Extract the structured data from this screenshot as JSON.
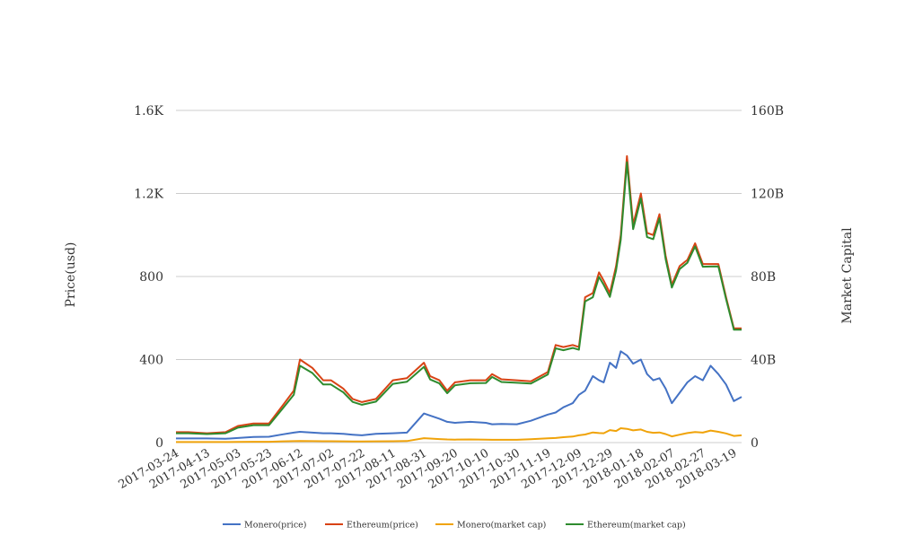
{
  "chart_data": {
    "type": "line",
    "title": "",
    "ylabel": "Price(usd)",
    "y2label": "Market Capital",
    "ylim": [
      0,
      1600
    ],
    "y2lim": [
      0,
      160000000000
    ],
    "yticks": [
      "0",
      "400",
      "800",
      "1.2K",
      "1.6K"
    ],
    "y2ticks": [
      "0",
      "40B",
      "80B",
      "120B",
      "160B"
    ],
    "xticks": [
      "2017-03-24",
      "2017-04-13",
      "2017-05-03",
      "2017-05-23",
      "2017-06-12",
      "2017-07-02",
      "2017-07-22",
      "2017-08-11",
      "2017-08-31",
      "2017-09-20",
      "2017-10-10",
      "2017-10-30",
      "2017-11-19",
      "2017-12-09",
      "2017-12-29",
      "2018-01-18",
      "2018-02-07",
      "2018-02-27",
      "2018-03-19"
    ],
    "grid": true,
    "legend_position": "bottom",
    "dates": [
      "2017-03-24",
      "2017-04-01",
      "2017-04-13",
      "2017-04-25",
      "2017-05-03",
      "2017-05-13",
      "2017-05-23",
      "2017-06-01",
      "2017-06-08",
      "2017-06-12",
      "2017-06-20",
      "2017-06-27",
      "2017-07-02",
      "2017-07-10",
      "2017-07-16",
      "2017-07-22",
      "2017-07-31",
      "2017-08-11",
      "2017-08-20",
      "2017-08-31",
      "2017-09-04",
      "2017-09-10",
      "2017-09-15",
      "2017-09-20",
      "2017-09-30",
      "2017-10-10",
      "2017-10-14",
      "2017-10-20",
      "2017-10-30",
      "2017-11-08",
      "2017-11-19",
      "2017-11-24",
      "2017-11-29",
      "2017-12-05",
      "2017-12-09",
      "2017-12-13",
      "2017-12-18",
      "2017-12-22",
      "2017-12-25",
      "2017-12-29",
      "2018-01-02",
      "2018-01-05",
      "2018-01-09",
      "2018-01-13",
      "2018-01-18",
      "2018-01-22",
      "2018-01-26",
      "2018-01-30",
      "2018-02-03",
      "2018-02-07",
      "2018-02-12",
      "2018-02-17",
      "2018-02-22",
      "2018-02-27",
      "2018-03-04",
      "2018-03-09",
      "2018-03-14",
      "2018-03-19",
      "2018-03-24"
    ],
    "series": [
      {
        "name": "Monero(price)",
        "axis": "left",
        "color": "#4472c4",
        "values": [
          20,
          20,
          20,
          18,
          22,
          27,
          28,
          40,
          48,
          52,
          48,
          45,
          45,
          42,
          38,
          35,
          42,
          45,
          48,
          140,
          130,
          115,
          100,
          95,
          100,
          95,
          88,
          90,
          88,
          105,
          135,
          145,
          170,
          190,
          230,
          250,
          320,
          300,
          290,
          385,
          360,
          440,
          420,
          380,
          400,
          330,
          300,
          310,
          260,
          190,
          240,
          290,
          320,
          300,
          370,
          330,
          280,
          200,
          220
        ]
      },
      {
        "name": "Ethereum(price)",
        "axis": "left",
        "color": "#d84315",
        "values": [
          50,
          50,
          45,
          50,
          80,
          92,
          92,
          180,
          250,
          400,
          360,
          300,
          300,
          260,
          210,
          195,
          210,
          300,
          310,
          385,
          320,
          300,
          250,
          290,
          300,
          300,
          330,
          305,
          300,
          295,
          340,
          470,
          460,
          470,
          460,
          700,
          720,
          820,
          780,
          720,
          850,
          1000,
          1380,
          1050,
          1200,
          1010,
          1000,
          1100,
          900,
          760,
          850,
          880,
          960,
          860,
          860,
          860,
          700,
          550,
          550
        ]
      },
      {
        "name": "Monero(market cap)",
        "axis": "right",
        "color": "#f0a30a",
        "values": [
          270000000,
          270000000,
          270000000,
          250000000,
          300000000,
          380000000,
          400000000,
          600000000,
          700000000,
          760000000,
          700000000,
          650000000,
          650000000,
          610000000,
          560000000,
          520000000,
          620000000,
          670000000,
          720000000,
          2100000000,
          1950000000,
          1700000000,
          1500000000,
          1420000000,
          1500000000,
          1420000000,
          1320000000,
          1350000000,
          1320000000,
          1580000000,
          2050000000,
          2200000000,
          2600000000,
          2900000000,
          3500000000,
          3900000000,
          4900000000,
          4600000000,
          4500000000,
          6000000000,
          5600000000,
          6900000000,
          6600000000,
          5900000000,
          6300000000,
          5200000000,
          4700000000,
          4900000000,
          4100000000,
          3000000000,
          3800000000,
          4600000000,
          5100000000,
          4800000000,
          5800000000,
          5200000000,
          4400000000,
          3200000000,
          3500000000
        ]
      },
      {
        "name": "Ethereum(market cap)",
        "axis": "right",
        "color": "#2e8b2e",
        "values": [
          4500000000,
          4500000000,
          4100000000,
          4500000000,
          7200000000,
          8400000000,
          8400000000,
          16500000000,
          23000000000,
          37000000000,
          33500000000,
          28000000000,
          28000000000,
          24200000000,
          19600000000,
          18200000000,
          19700000000,
          28300000000,
          29300000000,
          36500000000,
          30400000000,
          28500000000,
          23800000000,
          27600000000,
          28600000000,
          28700000000,
          31600000000,
          29200000000,
          28800000000,
          28400000000,
          32800000000,
          45400000000,
          44500000000,
          45600000000,
          44700000000,
          68000000000,
          70000000000,
          79800000000,
          76000000000,
          70200000000,
          83000000000,
          97700000000,
          135000000000,
          102800000000,
          117600000000,
          99000000000,
          98000000000,
          108000000000,
          88400000000,
          74700000000,
          83600000000,
          86600000000,
          94500000000,
          84700000000,
          84800000000,
          84900000000,
          69100000000,
          54400000000,
          54400000000
        ]
      }
    ]
  }
}
